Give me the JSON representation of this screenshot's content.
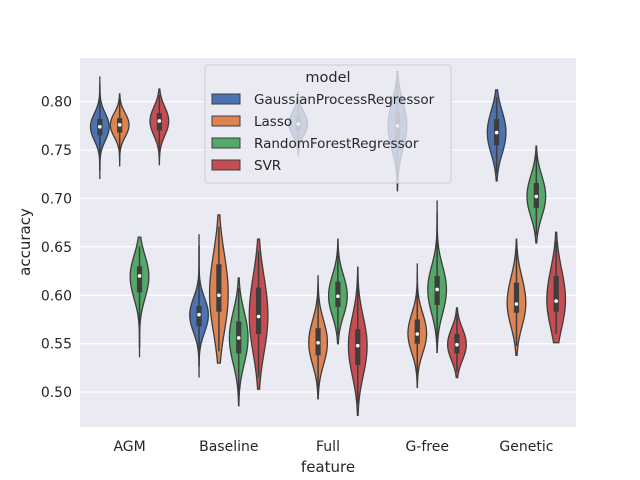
{
  "chart_data": {
    "type": "violin",
    "xlabel": "feature",
    "ylabel": "accuracy",
    "categories": [
      "AGM",
      "Baseline",
      "Full",
      "G-free",
      "Genetic"
    ],
    "ylim": [
      0.464,
      0.845
    ],
    "yticks": [
      "0.50",
      "0.55",
      "0.60",
      "0.65",
      "0.70",
      "0.75",
      "0.80"
    ],
    "grid": true,
    "legend": {
      "title": "model",
      "placement": "upper center, overlapping plot"
    },
    "series": [
      {
        "name": "GaussianProcessRegressor",
        "color": "#4c72b0",
        "groups": [
          {
            "category": "AGM",
            "min": 0.72,
            "max": 0.826,
            "q1": 0.765,
            "median": 0.774,
            "q3": 0.782
          },
          {
            "category": "Baseline",
            "min": 0.515,
            "max": 0.663,
            "q1": 0.568,
            "median": 0.58,
            "q3": 0.589
          },
          {
            "category": "Full",
            "min": 0.745,
            "max": 0.81,
            "q1": 0.77,
            "median": 0.777,
            "q3": 0.785
          },
          {
            "category": "G-free",
            "min": 0.708,
            "max": 0.831,
            "q1": 0.76,
            "median": 0.775,
            "q3": 0.79
          },
          {
            "category": "Genetic",
            "min": 0.718,
            "max": 0.812,
            "q1": 0.755,
            "median": 0.768,
            "q3": 0.782
          }
        ]
      },
      {
        "name": "Lasso",
        "color": "#dd8452",
        "groups": [
          {
            "category": "AGM",
            "min": 0.733,
            "max": 0.808,
            "q1": 0.768,
            "median": 0.776,
            "q3": 0.783
          },
          {
            "category": "Baseline",
            "min": 0.53,
            "max": 0.683,
            "q1": 0.583,
            "median": 0.6,
            "q3": 0.632
          },
          {
            "category": "Full",
            "min": 0.493,
            "max": 0.62,
            "q1": 0.538,
            "median": 0.551,
            "q3": 0.566
          },
          {
            "category": "G-free",
            "min": 0.505,
            "max": 0.633,
            "q1": 0.55,
            "median": 0.56,
            "q3": 0.575
          },
          {
            "category": "Genetic",
            "min": 0.538,
            "max": 0.658,
            "q1": 0.582,
            "median": 0.591,
            "q3": 0.613
          }
        ]
      },
      {
        "name": "RandomForestRegressor",
        "color": "#55a868",
        "groups": [
          {
            "category": "AGM",
            "min": 0.536,
            "max": 0.66,
            "q1": 0.603,
            "median": 0.62,
            "q3": 0.63
          },
          {
            "category": "Baseline",
            "min": 0.486,
            "max": 0.618,
            "q1": 0.54,
            "median": 0.556,
            "q3": 0.573
          },
          {
            "category": "Full",
            "min": 0.55,
            "max": 0.658,
            "q1": 0.588,
            "median": 0.599,
            "q3": 0.614
          },
          {
            "category": "G-free",
            "min": 0.541,
            "max": 0.698,
            "q1": 0.59,
            "median": 0.606,
            "q3": 0.62
          },
          {
            "category": "Genetic",
            "min": 0.654,
            "max": 0.754,
            "q1": 0.69,
            "median": 0.702,
            "q3": 0.716
          }
        ]
      },
      {
        "name": "SVR",
        "color": "#c44e52",
        "groups": [
          {
            "category": "AGM",
            "min": 0.735,
            "max": 0.813,
            "q1": 0.77,
            "median": 0.78,
            "q3": 0.788
          },
          {
            "category": "Baseline",
            "min": 0.503,
            "max": 0.658,
            "q1": 0.56,
            "median": 0.578,
            "q3": 0.608
          },
          {
            "category": "Full",
            "min": 0.476,
            "max": 0.629,
            "q1": 0.528,
            "median": 0.548,
            "q3": 0.565
          },
          {
            "category": "G-free",
            "min": 0.515,
            "max": 0.587,
            "q1": 0.54,
            "median": 0.549,
            "q3": 0.56
          },
          {
            "category": "Genetic",
            "min": 0.551,
            "max": 0.665,
            "q1": 0.583,
            "median": 0.594,
            "q3": 0.62
          }
        ]
      }
    ]
  }
}
